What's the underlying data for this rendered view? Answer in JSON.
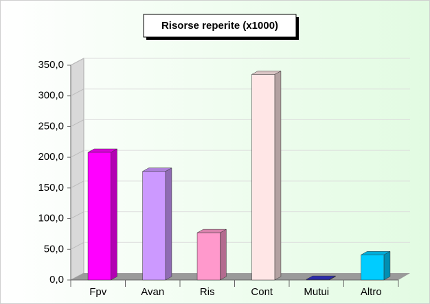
{
  "chart_data": {
    "type": "bar",
    "title": "Risorse reperite (x1000)",
    "categories": [
      "Fpv",
      "Avan",
      "Ris",
      "Cont",
      "Mutui",
      "Altro"
    ],
    "values": [
      208,
      177,
      77,
      335,
      1,
      41
    ],
    "colors": [
      "#ff00ff",
      "#cc99ff",
      "#ff99cc",
      "#ffe6e6",
      "#3333cc",
      "#00ccff"
    ],
    "ylim": [
      0,
      350
    ],
    "yticks": [
      {
        "value": 0,
        "label": "0,0"
      },
      {
        "value": 50,
        "label": "50,0"
      },
      {
        "value": 100,
        "label": "100,0"
      },
      {
        "value": 150,
        "label": "150,0"
      },
      {
        "value": 200,
        "label": "200,0"
      },
      {
        "value": 250,
        "label": "250,0"
      },
      {
        "value": 300,
        "label": "300,0"
      },
      {
        "value": 350,
        "label": "350,0"
      }
    ],
    "grid": true
  }
}
